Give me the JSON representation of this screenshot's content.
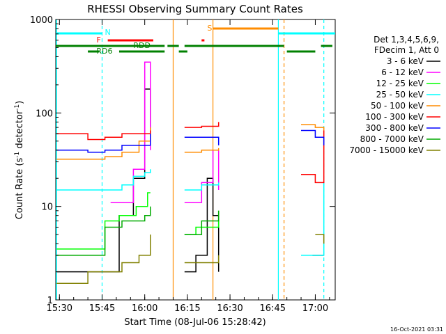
{
  "chart_data": {
    "type": "line",
    "title": "RHESSI Observing Summary Count Rates",
    "xlabel": "Start Time (08-Jul-06 15:28:42)",
    "ylabel_main": "Count Rate (s",
    "ylabel_sup1": "-1",
    "ylabel_mid": " detector",
    "ylabel_sup2": "-1",
    "ylabel_end": ")",
    "xlim": [
      "15:28:42",
      "17:07:00"
    ],
    "ylim": [
      1,
      1000
    ],
    "y_scale": "log",
    "x_ticks": [
      "15:30",
      "15:45",
      "16:00",
      "16:15",
      "16:30",
      "16:45",
      "17:00"
    ],
    "y_ticks": [
      "1",
      "10",
      "100",
      "1000"
    ],
    "timestamp": "16-Oct-2021 03:31",
    "legend": {
      "header1": "Det 1,3,4,5,6,9,",
      "header2": "FDecim 1, Att 0",
      "placement": "right"
    },
    "series": [
      {
        "name": "3 - 6 keV",
        "color": "#000000",
        "x": [
          "15:29",
          "15:40",
          "15:46",
          "15:48",
          "15:51",
          "15:56",
          "16:00",
          "16:02",
          "16:10",
          "16:14",
          "16:18",
          "16:22",
          "16:24",
          "16:26",
          "16:50",
          "16:59",
          "17:03"
        ],
        "y": [
          2,
          2,
          2,
          2,
          8,
          20,
          180,
          60,
          null,
          2,
          3,
          20,
          8,
          2,
          null,
          3,
          3
        ]
      },
      {
        "name": "6 - 12 keV",
        "color": "#ff00ff",
        "x": [
          "15:29",
          "15:45",
          "15:48",
          "15:52",
          "15:56",
          "16:00",
          "16:02",
          "16:10",
          "16:14",
          "16:20",
          "16:24",
          "16:26"
        ],
        "y": [
          null,
          null,
          11,
          11,
          25,
          350,
          40,
          null,
          11,
          18,
          40,
          15
        ]
      },
      {
        "name": "12 - 25 keV",
        "color": "#00ff00",
        "x": [
          "15:29",
          "15:44",
          "15:46",
          "15:51",
          "15:57",
          "16:01",
          "16:02",
          "16:10",
          "16:14",
          "16:18",
          "16:26",
          "16:50",
          "17:03"
        ],
        "y": [
          3.5,
          3.5,
          7,
          8,
          10,
          14,
          14,
          null,
          5,
          6,
          9,
          null,
          3
        ]
      },
      {
        "name": "25 - 50 keV",
        "color": "#00ffff",
        "x": [
          "15:29",
          "15:40",
          "15:46",
          "15:52",
          "15:56",
          "16:00",
          "16:02",
          "16:10",
          "16:14",
          "16:20",
          "16:26",
          "16:50",
          "16:55",
          "17:00",
          "17:03"
        ],
        "y": [
          15,
          15,
          15,
          17,
          21,
          23,
          25,
          null,
          15,
          17,
          18,
          null,
          3,
          3,
          18
        ]
      },
      {
        "name": "50 - 100 keV",
        "color": "#ff8c00",
        "x": [
          "15:29",
          "15:40",
          "15:46",
          "15:52",
          "15:58",
          "16:02",
          "16:10",
          "16:14",
          "16:20",
          "16:26",
          "16:50",
          "16:55",
          "17:00",
          "17:03"
        ],
        "y": [
          32,
          32,
          34,
          38,
          50,
          70,
          null,
          38,
          40,
          42,
          null,
          75,
          70,
          40
        ]
      },
      {
        "name": "100 - 300 keV",
        "color": "#ff0000",
        "x": [
          "15:29",
          "15:40",
          "15:46",
          "15:52",
          "16:02",
          "16:10",
          "16:14",
          "16:20",
          "16:26",
          "16:50",
          "16:55",
          "17:00",
          "17:03"
        ],
        "y": [
          60,
          52,
          55,
          60,
          65,
          null,
          70,
          72,
          80,
          null,
          22,
          18,
          65
        ]
      },
      {
        "name": "300 - 800 keV",
        "color": "#0000ff",
        "x": [
          "15:29",
          "15:40",
          "15:46",
          "15:52",
          "16:02",
          "16:10",
          "16:14",
          "16:20",
          "16:26",
          "16:50",
          "16:55",
          "17:00",
          "17:03"
        ],
        "y": [
          40,
          38,
          40,
          45,
          60,
          null,
          55,
          55,
          45,
          null,
          65,
          55,
          45
        ]
      },
      {
        "name": "800 - 7000 keV",
        "color": "#00aa00",
        "x": [
          "15:29",
          "15:44",
          "15:46",
          "15:52",
          "16:00",
          "16:02",
          "16:10",
          "16:14",
          "16:20",
          "16:26"
        ],
        "y": [
          3,
          3,
          6,
          7,
          8,
          10,
          null,
          5,
          7,
          9
        ]
      },
      {
        "name": "7000 - 15000 keV",
        "color": "#808000",
        "x": [
          "15:29",
          "15:40",
          "15:46",
          "15:52",
          "15:58",
          "16:02",
          "16:10",
          "16:14",
          "16:20",
          "16:26",
          "16:50",
          "17:00",
          "17:03"
        ],
        "y": [
          1.5,
          2,
          2,
          2.5,
          3,
          5,
          null,
          2.5,
          2.5,
          3,
          null,
          5,
          4
        ]
      }
    ],
    "annotations": [
      "N",
      "F",
      "RDD",
      "RD6",
      "S"
    ]
  }
}
